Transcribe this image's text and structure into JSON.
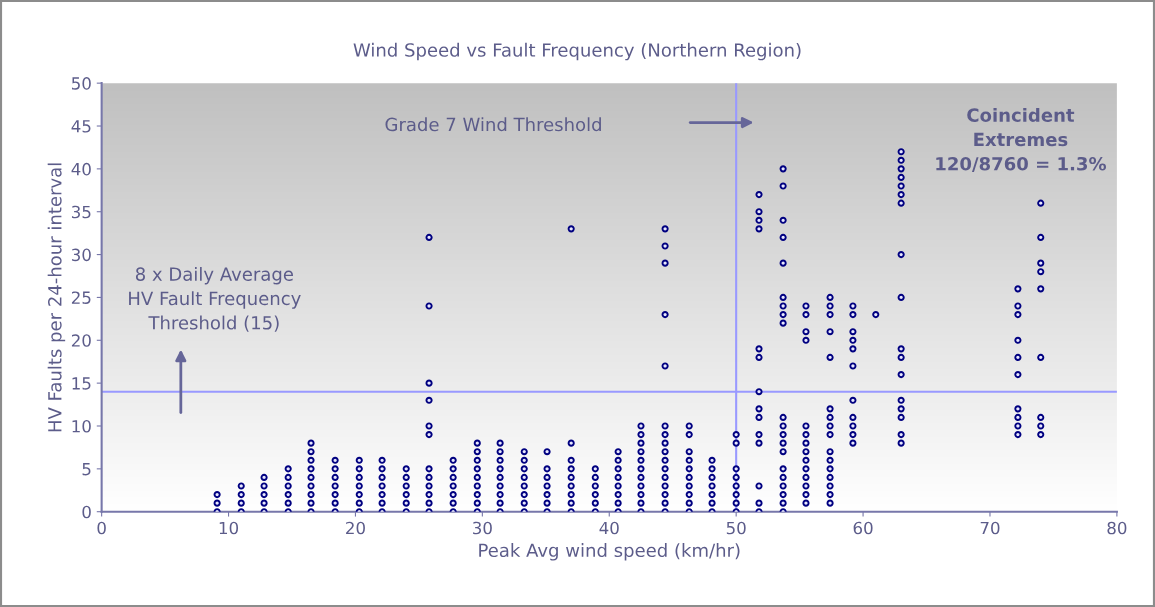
{
  "chart_data": {
    "type": "scatter",
    "title": "Wind Speed vs Fault Frequency (Northern Region)",
    "xlabel": "Peak Avg wind speed (km/hr)",
    "ylabel": "HV Faults per 24-hour interval",
    "xlim": [
      0,
      80
    ],
    "xticks": [
      0,
      10,
      20,
      30,
      40,
      50,
      60,
      70,
      80
    ],
    "ylim": [
      0,
      50
    ],
    "yticks": [
      0,
      5,
      10,
      15,
      20,
      25,
      30,
      35,
      40,
      45,
      50
    ],
    "grid": false,
    "marker": "circle",
    "series": [
      {
        "color": "#000080",
        "x": [
          9.1,
          9.1,
          9.1,
          11,
          11,
          11,
          11,
          12.8,
          12.8,
          12.8,
          12.8,
          12.8,
          14.7,
          14.7,
          14.7,
          14.7,
          14.7,
          14.7,
          16.5,
          16.5,
          16.5,
          16.5,
          16.5,
          16.5,
          16.5,
          16.5,
          16.5,
          18.4,
          18.4,
          18.4,
          18.4,
          18.4,
          18.4,
          18.4,
          20.3,
          20.3,
          20.3,
          20.3,
          20.3,
          20.3,
          20.3,
          22.1,
          22.1,
          22.1,
          22.1,
          22.1,
          22.1,
          22.1,
          24,
          24,
          24,
          24,
          24,
          24,
          25.8,
          25.8,
          25.8,
          25.8,
          25.8,
          25.8,
          25.8,
          25.8,
          25.8,
          25.8,
          25.8,
          25.8,
          27.7,
          27.7,
          27.7,
          27.7,
          27.7,
          27.7,
          27.7,
          29.6,
          29.6,
          29.6,
          29.6,
          29.6,
          29.6,
          29.6,
          29.6,
          29.6,
          31.4,
          31.4,
          31.4,
          31.4,
          31.4,
          31.4,
          31.4,
          31.4,
          31.4,
          33.3,
          33.3,
          33.3,
          33.3,
          33.3,
          33.3,
          33.3,
          33.3,
          35.1,
          35.1,
          35.1,
          35.1,
          35.1,
          35.1,
          35.1,
          37,
          37,
          37,
          37,
          37,
          37,
          37,
          37,
          37,
          38.9,
          38.9,
          38.9,
          38.9,
          38.9,
          38.9,
          40.7,
          40.7,
          40.7,
          40.7,
          40.7,
          40.7,
          40.7,
          40.7,
          42.5,
          42.5,
          42.5,
          42.5,
          42.5,
          42.5,
          42.5,
          42.5,
          42.5,
          42.5,
          42.5,
          44.4,
          44.4,
          44.4,
          44.4,
          44.4,
          44.4,
          44.4,
          44.4,
          44.4,
          44.4,
          44.4,
          44.4,
          44.4,
          44.4,
          44.4,
          44.4,
          46.3,
          46.3,
          46.3,
          46.3,
          46.3,
          46.3,
          46.3,
          46.3,
          46.3,
          46.3,
          48.1,
          48.1,
          48.1,
          48.1,
          48.1,
          48.1,
          48.1,
          50,
          50,
          50,
          50,
          50,
          50,
          50,
          50,
          51.8,
          51.8,
          51.8,
          51.8,
          51.8,
          51.8,
          51.8,
          51.8,
          51.8,
          51.8,
          51.8,
          51.8,
          51.8,
          51.8,
          53.7,
          53.7,
          53.7,
          53.7,
          53.7,
          53.7,
          53.7,
          53.7,
          53.7,
          53.7,
          53.7,
          53.7,
          53.7,
          53.7,
          53.7,
          53.7,
          53.7,
          53.7,
          53.7,
          53.7,
          55.5,
          55.5,
          55.5,
          55.5,
          55.5,
          55.5,
          55.5,
          55.5,
          55.5,
          55.5,
          55.5,
          55.5,
          55.5,
          55.5,
          57.4,
          57.4,
          57.4,
          57.4,
          57.4,
          57.4,
          57.4,
          57.4,
          57.4,
          57.4,
          57.4,
          57.4,
          57.4,
          57.4,
          57.4,
          57.4,
          59.2,
          59.2,
          59.2,
          59.2,
          59.2,
          59.2,
          59.2,
          59.2,
          59.2,
          59.2,
          59.2,
          61,
          63,
          63,
          63,
          63,
          63,
          63,
          63,
          63,
          63,
          63,
          63,
          63,
          63,
          63,
          63,
          63,
          63,
          72.2,
          72.2,
          72.2,
          72.2,
          72.2,
          72.2,
          72.2,
          72.2,
          72.2,
          72.2,
          74,
          74,
          74,
          74,
          74,
          74,
          74,
          74,
          74
        ],
        "values": [
          0,
          1,
          2,
          0,
          1,
          2,
          3,
          0,
          1,
          2,
          3,
          4,
          0,
          1,
          2,
          3,
          4,
          5,
          0,
          1,
          2,
          3,
          4,
          5,
          6,
          7,
          8,
          0,
          1,
          2,
          3,
          4,
          5,
          6,
          0,
          1,
          2,
          3,
          4,
          5,
          6,
          0,
          1,
          2,
          3,
          4,
          5,
          6,
          0,
          1,
          2,
          3,
          4,
          5,
          0,
          1,
          2,
          3,
          4,
          5,
          9,
          10,
          13,
          15,
          24,
          32,
          0,
          1,
          2,
          3,
          4,
          5,
          6,
          0,
          1,
          2,
          3,
          4,
          5,
          6,
          7,
          8,
          0,
          1,
          2,
          3,
          4,
          5,
          6,
          7,
          8,
          0,
          1,
          2,
          3,
          4,
          5,
          6,
          7,
          0,
          1,
          2,
          3,
          4,
          5,
          7,
          0,
          1,
          2,
          3,
          4,
          5,
          6,
          8,
          33,
          0,
          1,
          2,
          3,
          4,
          5,
          0,
          1,
          2,
          3,
          4,
          5,
          6,
          7,
          0,
          1,
          2,
          3,
          4,
          5,
          6,
          7,
          8,
          9,
          10,
          0,
          1,
          2,
          3,
          4,
          5,
          6,
          7,
          8,
          9,
          10,
          17,
          23,
          29,
          31,
          33,
          0,
          1,
          2,
          3,
          4,
          5,
          6,
          7,
          9,
          10,
          0,
          1,
          2,
          3,
          4,
          5,
          6,
          0,
          1,
          2,
          3,
          4,
          5,
          8,
          9,
          0,
          1,
          3,
          8,
          9,
          11,
          12,
          14,
          18,
          19,
          33,
          34,
          35,
          37,
          0,
          1,
          2,
          3,
          4,
          5,
          7,
          8,
          9,
          10,
          11,
          22,
          23,
          24,
          25,
          29,
          32,
          34,
          38,
          40,
          1,
          2,
          3,
          4,
          5,
          6,
          7,
          8,
          9,
          10,
          20,
          21,
          23,
          24,
          1,
          2,
          3,
          4,
          5,
          6,
          7,
          9,
          10,
          11,
          12,
          18,
          21,
          23,
          24,
          25,
          8,
          9,
          10,
          11,
          13,
          17,
          19,
          20,
          21,
          23,
          24,
          23,
          8,
          9,
          11,
          12,
          13,
          16,
          18,
          19,
          25,
          30,
          36,
          37,
          38,
          39,
          40,
          41,
          42,
          9,
          10,
          11,
          12,
          16,
          18,
          20,
          23,
          24,
          26,
          9,
          10,
          11,
          18,
          26,
          28,
          29,
          32,
          36
        ]
      }
    ],
    "ref_lines": [
      {
        "axis": "y",
        "value": 14,
        "color": "#9999ff"
      },
      {
        "axis": "x",
        "value": 50,
        "color": "#9999ff"
      }
    ],
    "annotations": [
      "8 x Daily Average\nHV Fault Frequency\nThreshold (15)",
      "Grade 7 Wind Threshold",
      "Coincident\nExtremes\n120/8760 = 1.3%"
    ]
  }
}
